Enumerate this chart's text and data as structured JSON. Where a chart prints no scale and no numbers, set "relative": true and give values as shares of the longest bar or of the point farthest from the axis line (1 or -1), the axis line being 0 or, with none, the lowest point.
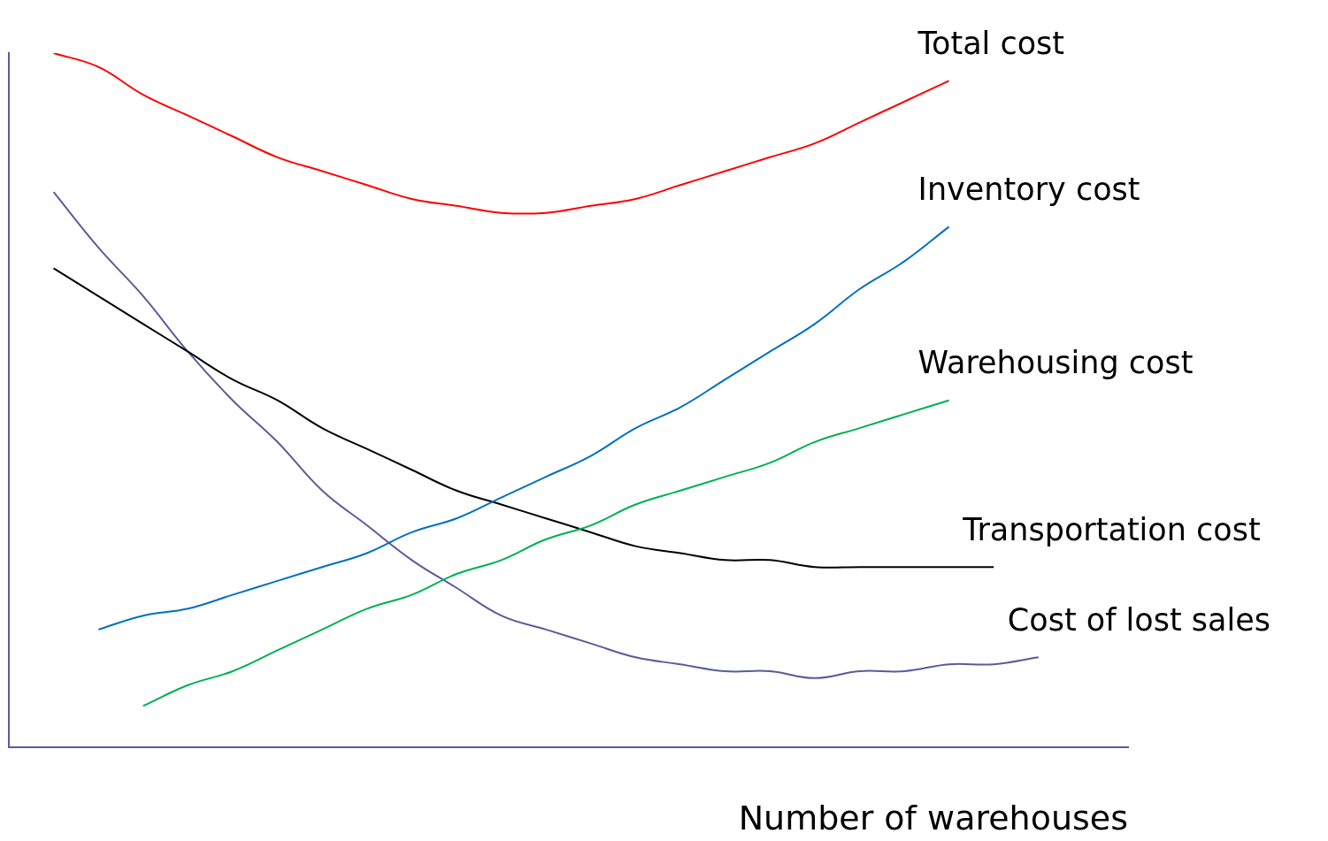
{
  "chart_data": {
    "type": "line",
    "relative": true,
    "xlabel": "Number of warehouses",
    "legend": false,
    "grid": false,
    "marker": "none",
    "line_style": "solid",
    "categories": [
      null,
      null,
      null,
      null,
      null,
      null,
      null,
      null,
      null,
      null,
      null,
      null,
      null,
      null,
      null,
      null,
      null,
      null,
      null,
      null,
      null,
      null,
      null,
      null,
      null,
      null
    ],
    "series": [
      {
        "name": "Total cost",
        "color": "#ff0000",
        "values": [
          null,
          1.0,
          0.98,
          0.94,
          0.91,
          0.88,
          0.85,
          0.83,
          0.81,
          0.79,
          0.78,
          0.77,
          0.77,
          0.78,
          0.79,
          0.81,
          0.83,
          0.85,
          0.87,
          0.9,
          0.93,
          0.96,
          null,
          null,
          null,
          null
        ]
      },
      {
        "name": "Inventory cost",
        "color": "#0070c0",
        "values": [
          null,
          null,
          0.17,
          0.19,
          0.2,
          0.22,
          0.24,
          0.26,
          0.28,
          0.31,
          0.33,
          0.36,
          0.39,
          0.42,
          0.46,
          0.49,
          0.53,
          0.57,
          0.61,
          0.66,
          0.7,
          0.75,
          null,
          null,
          null,
          null
        ]
      },
      {
        "name": "Warehousing cost",
        "color": "#00b050",
        "values": [
          null,
          null,
          null,
          0.06,
          0.09,
          0.11,
          0.14,
          0.17,
          0.2,
          0.22,
          0.25,
          0.27,
          0.3,
          0.32,
          0.35,
          0.37,
          0.39,
          0.41,
          0.44,
          0.46,
          0.48,
          0.5,
          null,
          null,
          null,
          null
        ]
      },
      {
        "name": "Transportation cost",
        "color": "#000000",
        "values": [
          null,
          0.69,
          0.65,
          0.61,
          0.57,
          0.53,
          0.5,
          0.46,
          0.43,
          0.4,
          0.37,
          0.35,
          0.33,
          0.31,
          0.29,
          0.28,
          0.27,
          0.27,
          0.26,
          0.26,
          0.26,
          0.26,
          0.26,
          null,
          null,
          null
        ]
      },
      {
        "name": "Cost of lost sales",
        "color": "#5b5b9b",
        "values": [
          null,
          0.8,
          0.72,
          0.65,
          0.57,
          0.5,
          0.44,
          0.37,
          0.32,
          0.27,
          0.23,
          0.19,
          0.17,
          0.15,
          0.13,
          0.12,
          0.11,
          0.11,
          0.1,
          0.11,
          0.11,
          0.12,
          0.12,
          0.13,
          null,
          null
        ]
      }
    ]
  }
}
